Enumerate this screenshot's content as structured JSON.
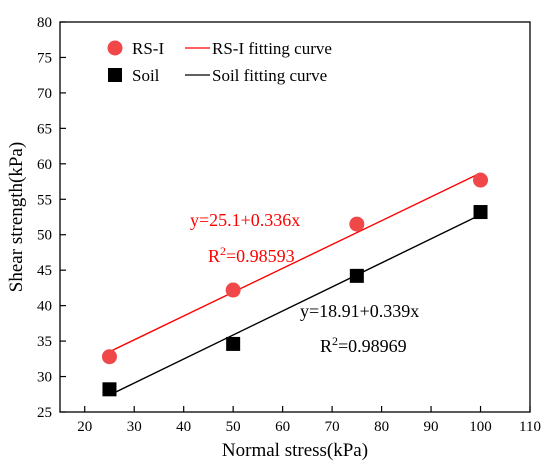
{
  "chart_data": {
    "type": "scatter",
    "title": "",
    "xlabel": "Normal stress(kPa)",
    "ylabel": "Shear strength(kPa)",
    "xlim": [
      15,
      110
    ],
    "ylim": [
      25,
      80
    ],
    "xticks": [
      20,
      30,
      40,
      50,
      60,
      70,
      80,
      90,
      100,
      110
    ],
    "yticks": [
      25,
      30,
      35,
      40,
      45,
      50,
      55,
      60,
      65,
      70,
      75,
      80
    ],
    "grid": false,
    "legend_position": "top-left",
    "series": [
      {
        "name": "RS-I",
        "marker": "circle",
        "color": "#f04848",
        "x": [
          25,
          50,
          75,
          100
        ],
        "y": [
          32.8,
          42.2,
          51.5,
          57.7
        ],
        "fit": {
          "name": "RS-I fitting curve",
          "intercept": 25.1,
          "slope": 0.336,
          "color": "#ff0000",
          "equation": "y=25.1+0.336x",
          "r2_prefix": "R",
          "r2_sup": "2",
          "r2_value": "=0.98593"
        }
      },
      {
        "name": "Soil",
        "marker": "square",
        "color": "#000000",
        "x": [
          25,
          50,
          75,
          100
        ],
        "y": [
          28.2,
          34.6,
          44.2,
          53.2
        ],
        "fit": {
          "name": "Soil fitting curve",
          "intercept": 18.91,
          "slope": 0.339,
          "color": "#000000",
          "equation": "y=18.91+0.339x",
          "r2_prefix": "R",
          "r2_sup": "2",
          "r2_value": "=0.98969"
        }
      }
    ]
  }
}
